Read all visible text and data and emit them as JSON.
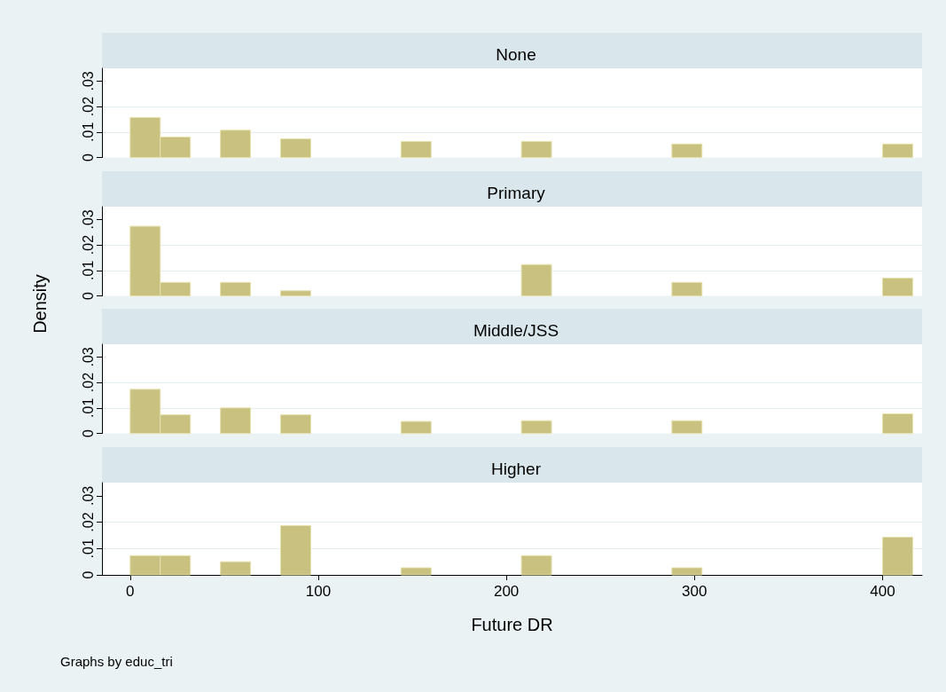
{
  "chart_data": [
    {
      "type": "histogram",
      "title": "None",
      "bins": [
        0,
        16,
        32,
        48,
        64,
        80,
        96,
        112,
        128,
        144,
        160,
        176,
        192,
        208,
        224,
        240,
        256,
        272,
        288,
        304,
        320,
        336,
        352,
        368,
        384,
        400,
        416
      ],
      "values": [
        0.0157,
        0.008,
        0,
        0.0107,
        0,
        0.0073,
        0,
        0,
        0,
        0.0063,
        0,
        0,
        0,
        0.0063,
        0,
        0,
        0,
        0,
        0.0053,
        0,
        0,
        0,
        0,
        0,
        0,
        0.0053
      ],
      "color": "#c9c17f",
      "xlim": [
        -15,
        421
      ],
      "ylim": [
        0,
        0.035
      ],
      "yticks": [
        {
          "value": 0,
          "label": "0"
        },
        {
          "value": 0.01,
          "label": ".01"
        },
        {
          "value": 0.02,
          "label": ".02"
        },
        {
          "value": 0.03,
          "label": ".03"
        }
      ],
      "grid": "y",
      "tick_labels": "y"
    },
    {
      "type": "histogram",
      "title": "Primary",
      "ylabel": "Density",
      "bins": [
        0,
        16,
        32,
        48,
        64,
        80,
        96,
        112,
        128,
        144,
        160,
        176,
        192,
        208,
        224,
        240,
        256,
        272,
        288,
        304,
        320,
        336,
        352,
        368,
        384,
        400,
        416
      ],
      "values": [
        0.0273,
        0.0053,
        0,
        0.0053,
        0,
        0.002,
        0,
        0,
        0,
        0,
        0,
        0,
        0,
        0.0123,
        0,
        0,
        0,
        0,
        0.0053,
        0,
        0,
        0,
        0,
        0,
        0,
        0.007
      ],
      "color": "#c9c17f",
      "xlim": [
        -15,
        421
      ],
      "ylim": [
        0,
        0.035
      ],
      "yticks": [
        {
          "value": 0,
          "label": "0"
        },
        {
          "value": 0.01,
          "label": ".01"
        },
        {
          "value": 0.02,
          "label": ".02"
        },
        {
          "value": 0.03,
          "label": ".03"
        }
      ],
      "grid": "y",
      "tick_labels": "y"
    },
    {
      "type": "histogram",
      "title": "Middle/JSS",
      "bins": [
        0,
        16,
        32,
        48,
        64,
        80,
        96,
        112,
        128,
        144,
        160,
        176,
        192,
        208,
        224,
        240,
        256,
        272,
        288,
        304,
        320,
        336,
        352,
        368,
        384,
        400,
        416
      ],
      "values": [
        0.0173,
        0.0073,
        0,
        0.01,
        0,
        0.0073,
        0,
        0,
        0,
        0.0047,
        0,
        0,
        0,
        0.005,
        0,
        0,
        0,
        0,
        0.005,
        0,
        0,
        0,
        0,
        0,
        0,
        0.0077
      ],
      "color": "#c9c17f",
      "xlim": [
        -15,
        421
      ],
      "ylim": [
        0,
        0.035
      ],
      "yticks": [
        {
          "value": 0,
          "label": "0"
        },
        {
          "value": 0.01,
          "label": ".01"
        },
        {
          "value": 0.02,
          "label": ".02"
        },
        {
          "value": 0.03,
          "label": ".03"
        }
      ],
      "grid": "y",
      "tick_labels": "y"
    },
    {
      "type": "histogram",
      "title": "Higher",
      "xlabel": "Future DR",
      "annotations": [
        "Graphs by educ_tri"
      ],
      "bins": [
        0,
        16,
        32,
        48,
        64,
        80,
        96,
        112,
        128,
        144,
        160,
        176,
        192,
        208,
        224,
        240,
        256,
        272,
        288,
        304,
        320,
        336,
        352,
        368,
        384,
        400,
        416
      ],
      "values": [
        0.0073,
        0.0073,
        0,
        0.005,
        0,
        0.0187,
        0,
        0,
        0,
        0.0027,
        0,
        0,
        0,
        0.0073,
        0,
        0,
        0,
        0,
        0.0027,
        0,
        0,
        0,
        0,
        0,
        0,
        0.0143
      ],
      "color": "#c9c17f",
      "xlim": [
        -15,
        421
      ],
      "xticks": [
        0,
        100,
        200,
        300,
        400
      ],
      "ylim": [
        0,
        0.035
      ],
      "yticks": [
        {
          "value": 0,
          "label": "0"
        },
        {
          "value": 0.01,
          "label": ".01"
        },
        {
          "value": 0.02,
          "label": ".02"
        },
        {
          "value": 0.03,
          "label": ".03"
        }
      ],
      "grid": "y"
    }
  ]
}
